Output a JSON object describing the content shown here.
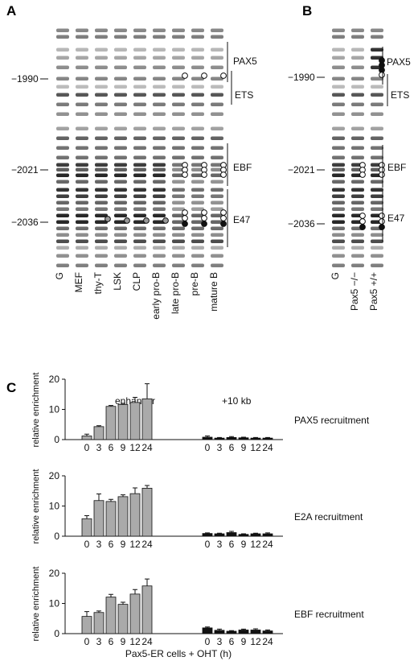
{
  "panels": {
    "a": {
      "letter": "A",
      "lanes": [
        "G",
        "MEF",
        "thy-T",
        "LSK",
        "CLP",
        "early pro-B",
        "late pro-B",
        "pre-B",
        "mature B"
      ],
      "positions": [
        "−1990",
        "−2021",
        "−2036"
      ],
      "sites": [
        "PAX5",
        "ETS",
        "EBF",
        "E47"
      ]
    },
    "b": {
      "letter": "B",
      "lanes": [
        "G",
        "Pax5 −/−",
        "Pax5 +/+"
      ],
      "positions": [
        "−1990",
        "−2021",
        "−2036"
      ],
      "sites": [
        "PAX5",
        "ETS",
        "EBF",
        "E47"
      ]
    },
    "c": {
      "letter": "C",
      "region_labels": [
        "enhancer",
        "+10 kb"
      ],
      "xlabel": "Pax5-ER cells + OHT (h)"
    }
  },
  "chart_data": [
    {
      "type": "bar",
      "title": "PAX5 recruitment",
      "ylabel": "relative enrichment",
      "ylim": [
        0,
        20
      ],
      "yticks": [
        0,
        10,
        20
      ],
      "categories": [
        "0",
        "3",
        "6",
        "9",
        "12",
        "24"
      ],
      "series": [
        {
          "name": "enhancer",
          "color": "#aaaaaa",
          "values": [
            1.2,
            4.3,
            11.0,
            11.6,
            12.3,
            13.5
          ],
          "errors": [
            0.6,
            0.3,
            0.3,
            0.4,
            1.7,
            5.0
          ]
        },
        {
          "name": "+10 kb",
          "color": "#111111",
          "values": [
            0.8,
            0.5,
            0.7,
            0.6,
            0.5,
            0.5
          ],
          "errors": [
            0.4,
            0.2,
            0.3,
            0.2,
            0.2,
            0.2
          ]
        }
      ]
    },
    {
      "type": "bar",
      "title": "E2A recruitment",
      "ylabel": "relative enrichment",
      "ylim": [
        0,
        20
      ],
      "yticks": [
        0,
        10,
        20
      ],
      "categories": [
        "0",
        "3",
        "6",
        "9",
        "12",
        "24"
      ],
      "series": [
        {
          "name": "enhancer",
          "color": "#aaaaaa",
          "values": [
            5.8,
            11.8,
            11.5,
            13.1,
            14.1,
            15.9
          ],
          "errors": [
            1.0,
            2.2,
            0.7,
            0.6,
            1.9,
            0.9
          ]
        },
        {
          "name": "+10 kb",
          "color": "#111111",
          "values": [
            0.9,
            0.8,
            1.2,
            0.6,
            0.8,
            0.8
          ],
          "errors": [
            0.2,
            0.2,
            0.4,
            0.2,
            0.2,
            0.3
          ]
        }
      ]
    },
    {
      "type": "bar",
      "title": "EBF recruitment",
      "ylabel": "relative enrichment",
      "ylim": [
        0,
        20
      ],
      "yticks": [
        0,
        10,
        20
      ],
      "categories": [
        "0",
        "3",
        "6",
        "9",
        "12",
        "24"
      ],
      "series": [
        {
          "name": "enhancer",
          "color": "#aaaaaa",
          "values": [
            5.7,
            7.0,
            12.1,
            9.7,
            13.1,
            15.8
          ],
          "errors": [
            1.6,
            0.5,
            0.9,
            0.7,
            1.5,
            2.3
          ]
        },
        {
          "name": "+10 kb",
          "color": "#111111",
          "values": [
            1.9,
            1.1,
            0.8,
            1.2,
            1.2,
            0.9
          ],
          "errors": [
            0.3,
            0.4,
            0.2,
            0.3,
            0.4,
            0.3
          ]
        }
      ]
    }
  ]
}
